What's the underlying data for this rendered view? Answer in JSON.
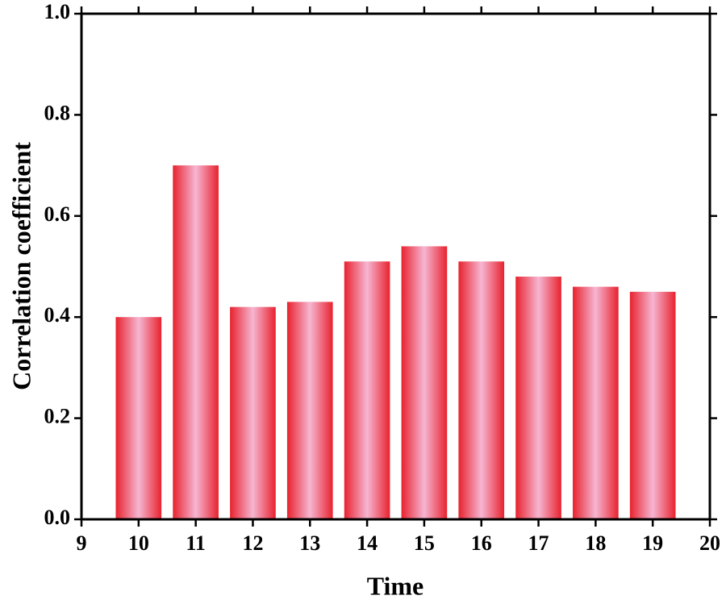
{
  "chart_data": {
    "type": "bar",
    "x_label": "Time",
    "y_label": "Correlation coefficient",
    "x": [
      10,
      11,
      12,
      13,
      14,
      15,
      16,
      17,
      18,
      19
    ],
    "values": [
      0.4,
      0.7,
      0.42,
      0.43,
      0.51,
      0.54,
      0.51,
      0.48,
      0.46,
      0.45
    ],
    "color": "#e8222e",
    "xlim": [
      9,
      20
    ],
    "xticks": [
      9,
      10,
      11,
      12,
      13,
      14,
      15,
      16,
      17,
      18,
      19,
      20
    ],
    "ylim": [
      0,
      1
    ],
    "yticks": [
      {
        "value": 0,
        "label": "0.0"
      },
      0.2,
      0.4,
      0.6,
      0.8,
      {
        "value": 1,
        "label": "1.0"
      }
    ],
    "grid": false
  }
}
